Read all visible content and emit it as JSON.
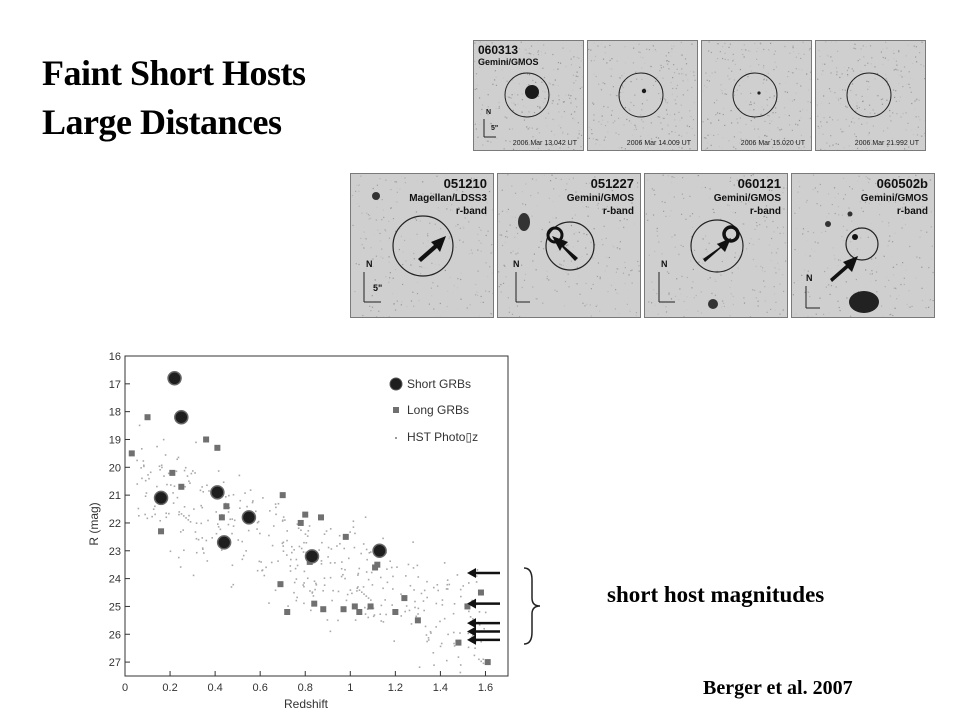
{
  "slide": {
    "title_line1": "Faint Short Hosts",
    "title_line2": "Large Distances",
    "caption": "short host magnitudes",
    "citation": "Berger et al. 2007"
  },
  "top_panels": [
    {
      "id": "060313",
      "instrument": "Gemini/GMOS",
      "date": "2006 Mar 13.042 UT"
    },
    {
      "id": "",
      "instrument": "",
      "date": "2006 Mar 14.009 UT"
    },
    {
      "id": "",
      "instrument": "",
      "date": "2006 Mar 15.020 UT"
    },
    {
      "id": "",
      "instrument": "",
      "date": "2006 Mar 21.992 UT"
    }
  ],
  "bottom_panels": [
    {
      "id": "051210",
      "instrument": "Magellan/LDSS3",
      "band": "r-band"
    },
    {
      "id": "051227",
      "instrument": "Gemini/GMOS",
      "band": "r-band"
    },
    {
      "id": "060121",
      "instrument": "Gemini/GMOS",
      "band": "r-band"
    },
    {
      "id": "060502b",
      "instrument": "Gemini/GMOS",
      "band": "r-band"
    }
  ],
  "compass": {
    "north": "N",
    "scale": "5\""
  },
  "chart_data": {
    "type": "scatter",
    "xlabel": "Redshift",
    "ylabel": "R  (mag)",
    "xlim": [
      0,
      1.7
    ],
    "ylim": [
      16,
      27.5
    ],
    "y_inverted": true,
    "x_ticks": [
      "0",
      "0.2",
      "0.4",
      "0.6",
      "0.8",
      "1",
      "1.2",
      "1.4",
      "1.6"
    ],
    "y_ticks": [
      "16",
      "17",
      "18",
      "19",
      "20",
      "21",
      "22",
      "23",
      "24",
      "25",
      "26",
      "27"
    ],
    "legend_position": "top-right",
    "series": [
      {
        "name": "Short GRBs",
        "marker": "large-circle",
        "color": "#1e1e1e",
        "points": [
          [
            0.16,
            21.1
          ],
          [
            0.22,
            16.8
          ],
          [
            0.25,
            18.2
          ],
          [
            0.41,
            20.9
          ],
          [
            0.44,
            22.7
          ],
          [
            0.55,
            21.8
          ],
          [
            0.83,
            23.2
          ],
          [
            1.13,
            23.0
          ]
        ]
      },
      {
        "name": "Long GRBs",
        "marker": "square",
        "color": "#707070",
        "points": [
          [
            0.03,
            19.5
          ],
          [
            0.1,
            18.2
          ],
          [
            0.16,
            22.3
          ],
          [
            0.21,
            20.2
          ],
          [
            0.25,
            20.7
          ],
          [
            0.36,
            19.0
          ],
          [
            0.41,
            19.3
          ],
          [
            0.43,
            21.8
          ],
          [
            0.45,
            21.4
          ],
          [
            0.55,
            21.8
          ],
          [
            0.69,
            24.2
          ],
          [
            0.7,
            21.0
          ],
          [
            0.72,
            25.2
          ],
          [
            0.78,
            22.0
          ],
          [
            0.8,
            21.7
          ],
          [
            0.82,
            23.4
          ],
          [
            0.84,
            24.9
          ],
          [
            0.87,
            21.8
          ],
          [
            0.88,
            25.1
          ],
          [
            0.97,
            25.1
          ],
          [
            0.98,
            22.5
          ],
          [
            1.02,
            25.0
          ],
          [
            1.04,
            25.2
          ],
          [
            1.09,
            25.0
          ],
          [
            1.11,
            23.6
          ],
          [
            1.12,
            23.5
          ],
          [
            1.2,
            25.2
          ],
          [
            1.24,
            24.7
          ],
          [
            1.3,
            25.5
          ],
          [
            1.48,
            26.3
          ],
          [
            1.52,
            25.0
          ],
          [
            1.58,
            24.5
          ],
          [
            1.61,
            27.0
          ]
        ]
      },
      {
        "name": "HST Photo▯z",
        "marker": "dot",
        "color": "#a0a0a0",
        "points": []
      }
    ],
    "short_host_arrows_R": [
      23.8,
      24.9,
      25.6,
      25.9,
      26.2
    ]
  }
}
